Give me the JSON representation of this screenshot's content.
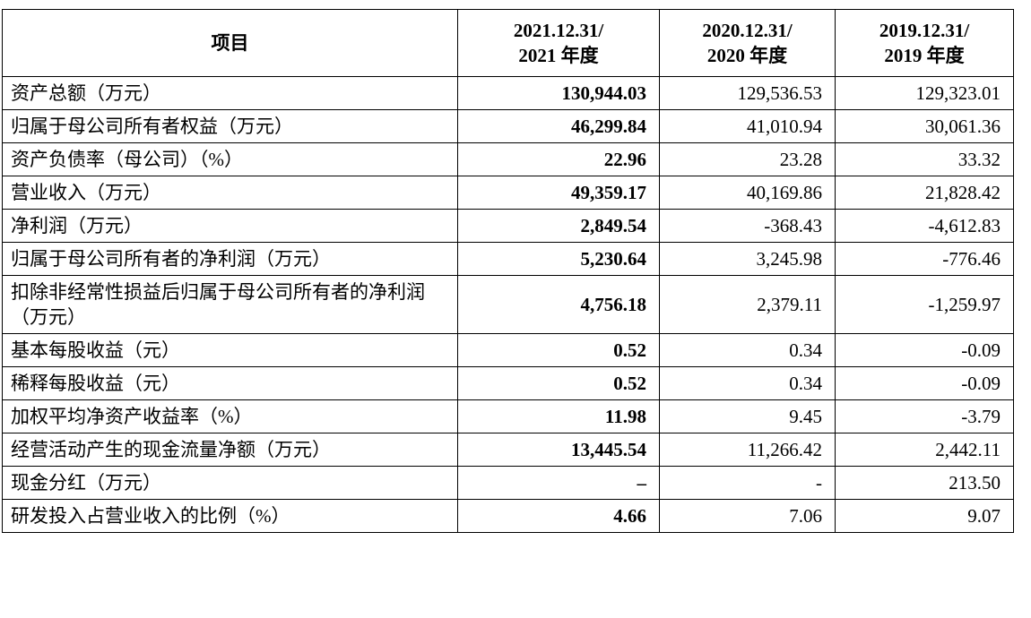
{
  "table": {
    "header": {
      "item_label": "项目",
      "periods": [
        {
          "line1": "2021.12.31/",
          "line2": "2021 年度"
        },
        {
          "line1": "2020.12.31/",
          "line2": "2020 年度"
        },
        {
          "line1": "2019.12.31/",
          "line2": "2019 年度"
        }
      ]
    },
    "rows": [
      {
        "item": "资产总额（万元）",
        "values": [
          "130,944.03",
          "129,536.53",
          "129,323.01"
        ]
      },
      {
        "item": "归属于母公司所有者权益（万元）",
        "values": [
          "46,299.84",
          "41,010.94",
          "30,061.36"
        ]
      },
      {
        "item": "资产负债率（母公司）（%）",
        "values": [
          "22.96",
          "23.28",
          "33.32"
        ]
      },
      {
        "item": "营业收入（万元）",
        "values": [
          "49,359.17",
          "40,169.86",
          "21,828.42"
        ]
      },
      {
        "item": "净利润（万元）",
        "values": [
          "2,849.54",
          "-368.43",
          "-4,612.83"
        ]
      },
      {
        "item": "归属于母公司所有者的净利润（万元）",
        "values": [
          "5,230.64",
          "3,245.98",
          "-776.46"
        ]
      },
      {
        "item": "扣除非经常性损益后归属于母公司所有者的净利润（万元）",
        "values": [
          "4,756.18",
          "2,379.11",
          "-1,259.97"
        ]
      },
      {
        "item": "基本每股收益（元）",
        "values": [
          "0.52",
          "0.34",
          "-0.09"
        ]
      },
      {
        "item": "稀释每股收益（元）",
        "values": [
          "0.52",
          "0.34",
          "-0.09"
        ]
      },
      {
        "item": "加权平均净资产收益率（%）",
        "values": [
          "11.98",
          "9.45",
          "-3.79"
        ]
      },
      {
        "item": "经营活动产生的现金流量净额（万元）",
        "values": [
          "13,445.54",
          "11,266.42",
          "2,442.11"
        ]
      },
      {
        "item": "现金分红（万元）",
        "values": [
          "–",
          "-",
          "213.50"
        ]
      },
      {
        "item": "研发投入占营业收入的比例（%）",
        "values": [
          "4.66",
          "7.06",
          "9.07"
        ]
      }
    ],
    "year_keys": [
      "2021",
      "2020",
      "2019"
    ]
  }
}
